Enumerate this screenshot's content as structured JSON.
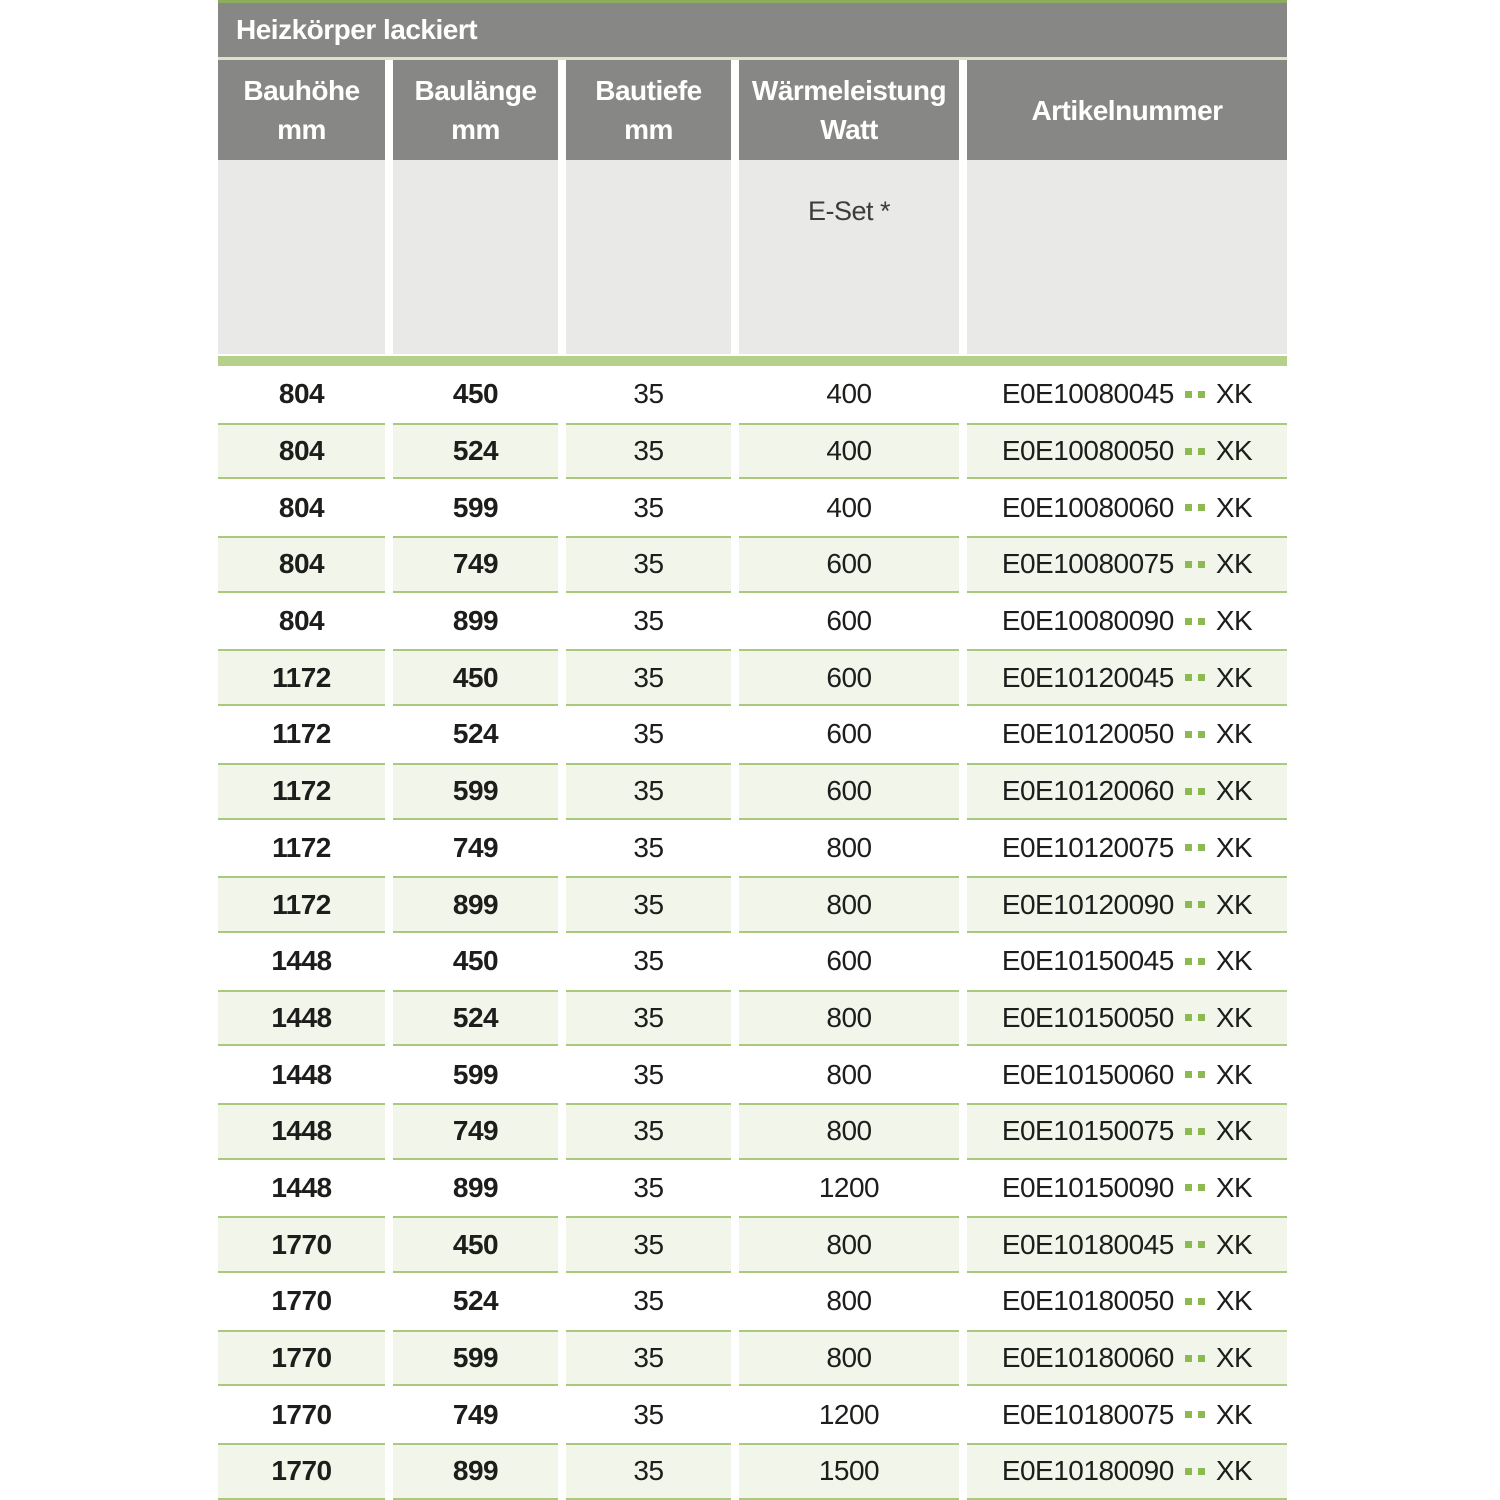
{
  "table": {
    "title": "Heizkörper lackiert",
    "columns": [
      {
        "label": "Bauhöhe",
        "unit": "mm"
      },
      {
        "label": "Baulänge",
        "unit": "mm"
      },
      {
        "label": "Bautiefe",
        "unit": "mm"
      },
      {
        "label": "Wärmeleistung",
        "unit": "Watt"
      },
      {
        "label": "Artikelnummer",
        "unit": ""
      }
    ],
    "subheader": {
      "eset_label": "E-Set *"
    },
    "artikel_suffix": "XK",
    "artikel_dot_count": 2,
    "rows": [
      {
        "bauhoehe": "804",
        "baulaenge": "450",
        "bautiefe": "35",
        "watt": "400",
        "artikel_code": "E0E10080045"
      },
      {
        "bauhoehe": "804",
        "baulaenge": "524",
        "bautiefe": "35",
        "watt": "400",
        "artikel_code": "E0E10080050"
      },
      {
        "bauhoehe": "804",
        "baulaenge": "599",
        "bautiefe": "35",
        "watt": "400",
        "artikel_code": "E0E10080060"
      },
      {
        "bauhoehe": "804",
        "baulaenge": "749",
        "bautiefe": "35",
        "watt": "600",
        "artikel_code": "E0E10080075"
      },
      {
        "bauhoehe": "804",
        "baulaenge": "899",
        "bautiefe": "35",
        "watt": "600",
        "artikel_code": "E0E10080090"
      },
      {
        "bauhoehe": "1172",
        "baulaenge": "450",
        "bautiefe": "35",
        "watt": "600",
        "artikel_code": "E0E10120045"
      },
      {
        "bauhoehe": "1172",
        "baulaenge": "524",
        "bautiefe": "35",
        "watt": "600",
        "artikel_code": "E0E10120050"
      },
      {
        "bauhoehe": "1172",
        "baulaenge": "599",
        "bautiefe": "35",
        "watt": "600",
        "artikel_code": "E0E10120060"
      },
      {
        "bauhoehe": "1172",
        "baulaenge": "749",
        "bautiefe": "35",
        "watt": "800",
        "artikel_code": "E0E10120075"
      },
      {
        "bauhoehe": "1172",
        "baulaenge": "899",
        "bautiefe": "35",
        "watt": "800",
        "artikel_code": "E0E10120090"
      },
      {
        "bauhoehe": "1448",
        "baulaenge": "450",
        "bautiefe": "35",
        "watt": "600",
        "artikel_code": "E0E10150045"
      },
      {
        "bauhoehe": "1448",
        "baulaenge": "524",
        "bautiefe": "35",
        "watt": "800",
        "artikel_code": "E0E10150050"
      },
      {
        "bauhoehe": "1448",
        "baulaenge": "599",
        "bautiefe": "35",
        "watt": "800",
        "artikel_code": "E0E10150060"
      },
      {
        "bauhoehe": "1448",
        "baulaenge": "749",
        "bautiefe": "35",
        "watt": "800",
        "artikel_code": "E0E10150075"
      },
      {
        "bauhoehe": "1448",
        "baulaenge": "899",
        "bautiefe": "35",
        "watt": "1200",
        "artikel_code": "E0E10150090"
      },
      {
        "bauhoehe": "1770",
        "baulaenge": "450",
        "bautiefe": "35",
        "watt": "800",
        "artikel_code": "E0E10180045"
      },
      {
        "bauhoehe": "1770",
        "baulaenge": "524",
        "bautiefe": "35",
        "watt": "800",
        "artikel_code": "E0E10180050"
      },
      {
        "bauhoehe": "1770",
        "baulaenge": "599",
        "bautiefe": "35",
        "watt": "800",
        "artikel_code": "E0E10180060"
      },
      {
        "bauhoehe": "1770",
        "baulaenge": "749",
        "bautiefe": "35",
        "watt": "1200",
        "artikel_code": "E0E10180075"
      },
      {
        "bauhoehe": "1770",
        "baulaenge": "899",
        "bautiefe": "35",
        "watt": "1500",
        "artikel_code": "E0E10180090"
      }
    ],
    "colors": {
      "header_gray": "#878786",
      "subheader_gray": "#e9e9e8",
      "top_line_green": "#8cae5c",
      "separator_light_green": "#dde4c5",
      "bar_green": "#b5d08b",
      "row_bg_green": "#f2f5ea",
      "row_border_green": "#aac97c",
      "dot_green": "#8cba50",
      "text_dark": "#1d1d1b",
      "text_white": "#ffffff"
    }
  }
}
